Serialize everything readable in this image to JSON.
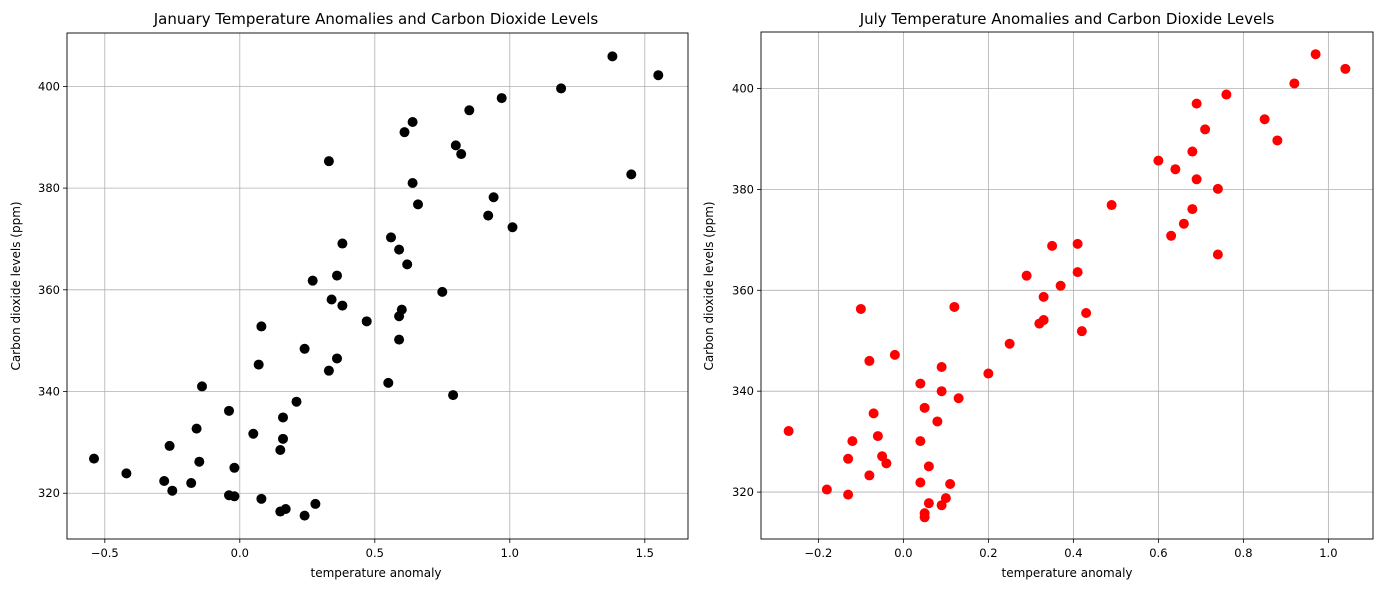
{
  "chart_data": [
    {
      "type": "scatter",
      "title": "January Temperature Anomalies and Carbon Dioxide Levels",
      "xlabel": "temperature anomaly",
      "ylabel": "Carbon dioxide levels (ppm)",
      "xlim": [
        -0.64,
        1.66
      ],
      "ylim": [
        311,
        410.5
      ],
      "xticks": [
        -0.5,
        0.0,
        0.5,
        1.0,
        1.5
      ],
      "xtick_labels": [
        "−0.5",
        "0.0",
        "0.5",
        "1.0",
        "1.5"
      ],
      "yticks": [
        320,
        340,
        360,
        380,
        400
      ],
      "ytick_labels": [
        "320",
        "340",
        "360",
        "380",
        "400"
      ],
      "grid": true,
      "color": "#000000",
      "points": [
        [
          -0.54,
          326.8
        ],
        [
          -0.42,
          323.9
        ],
        [
          -0.28,
          322.4
        ],
        [
          -0.25,
          320.5
        ],
        [
          -0.26,
          329.3
        ],
        [
          -0.18,
          322.0
        ],
        [
          -0.15,
          326.2
        ],
        [
          -0.16,
          332.7
        ],
        [
          -0.14,
          341.0
        ],
        [
          -0.04,
          336.2
        ],
        [
          -0.04,
          319.6
        ],
        [
          -0.02,
          319.4
        ],
        [
          -0.02,
          325.0
        ],
        [
          0.05,
          331.7
        ],
        [
          0.08,
          318.9
        ],
        [
          0.07,
          345.3
        ],
        [
          0.08,
          352.8
        ],
        [
          0.15,
          328.5
        ],
        [
          0.16,
          330.7
        ],
        [
          0.16,
          334.9
        ],
        [
          0.15,
          316.4
        ],
        [
          0.17,
          316.9
        ],
        [
          0.21,
          338.0
        ],
        [
          0.24,
          315.6
        ],
        [
          0.28,
          317.9
        ],
        [
          0.24,
          348.4
        ],
        [
          0.27,
          361.8
        ],
        [
          0.33,
          344.1
        ],
        [
          0.34,
          358.1
        ],
        [
          0.36,
          362.8
        ],
        [
          0.36,
          346.5
        ],
        [
          0.38,
          356.9
        ],
        [
          0.38,
          369.1
        ],
        [
          0.33,
          385.3
        ],
        [
          0.47,
          353.8
        ],
        [
          0.55,
          341.7
        ],
        [
          0.56,
          370.3
        ],
        [
          0.59,
          354.8
        ],
        [
          0.59,
          350.2
        ],
        [
          0.59,
          367.9
        ],
        [
          0.6,
          356.1
        ],
        [
          0.62,
          365.0
        ],
        [
          0.61,
          391.0
        ],
        [
          0.64,
          393.0
        ],
        [
          0.64,
          381.0
        ],
        [
          0.66,
          376.8
        ],
        [
          0.75,
          359.6
        ],
        [
          0.79,
          339.3
        ],
        [
          0.8,
          388.4
        ],
        [
          0.82,
          386.7
        ],
        [
          0.85,
          395.3
        ],
        [
          0.92,
          374.6
        ],
        [
          0.94,
          378.2
        ],
        [
          0.97,
          397.7
        ],
        [
          1.01,
          372.3
        ],
        [
          1.19,
          399.6
        ],
        [
          1.38,
          405.9
        ],
        [
          1.45,
          382.7
        ],
        [
          1.55,
          402.2
        ]
      ]
    },
    {
      "type": "scatter",
      "title": "July Temperature Anomalies and Carbon Dioxide Levels",
      "xlabel": "temperature anomaly",
      "ylabel": "Carbon dioxide levels (ppm)",
      "xlim": [
        -0.335,
        1.105
      ],
      "ylim": [
        310.7,
        411.2
      ],
      "xticks": [
        -0.2,
        0.0,
        0.2,
        0.4,
        0.6,
        0.8,
        1.0
      ],
      "xtick_labels": [
        "−0.2",
        "0.0",
        "0.2",
        "0.4",
        "0.6",
        "0.8",
        "1.0"
      ],
      "yticks": [
        320,
        340,
        360,
        380,
        400
      ],
      "ytick_labels": [
        "320",
        "340",
        "360",
        "380",
        "400"
      ],
      "grid": true,
      "color": "#ff0000",
      "points": [
        [
          -0.27,
          332.1
        ],
        [
          -0.18,
          320.5
        ],
        [
          -0.13,
          319.5
        ],
        [
          -0.13,
          326.6
        ],
        [
          -0.12,
          330.1
        ],
        [
          -0.1,
          356.3
        ],
        [
          -0.08,
          346.0
        ],
        [
          -0.08,
          323.3
        ],
        [
          -0.07,
          335.6
        ],
        [
          -0.06,
          331.1
        ],
        [
          -0.05,
          327.1
        ],
        [
          -0.04,
          325.7
        ],
        [
          -0.02,
          347.2
        ],
        [
          0.04,
          341.5
        ],
        [
          0.04,
          330.1
        ],
        [
          0.04,
          321.9
        ],
        [
          0.05,
          336.7
        ],
        [
          0.05,
          315.0
        ],
        [
          0.05,
          315.8
        ],
        [
          0.06,
          317.8
        ],
        [
          0.06,
          325.1
        ],
        [
          0.08,
          334.0
        ],
        [
          0.09,
          340.0
        ],
        [
          0.09,
          344.8
        ],
        [
          0.09,
          317.4
        ],
        [
          0.1,
          318.8
        ],
        [
          0.11,
          321.6
        ],
        [
          0.12,
          356.7
        ],
        [
          0.13,
          338.6
        ],
        [
          0.2,
          343.5
        ],
        [
          0.25,
          349.4
        ],
        [
          0.29,
          362.9
        ],
        [
          0.32,
          353.4
        ],
        [
          0.33,
          354.1
        ],
        [
          0.33,
          358.7
        ],
        [
          0.35,
          368.8
        ],
        [
          0.37,
          360.9
        ],
        [
          0.41,
          363.6
        ],
        [
          0.41,
          369.2
        ],
        [
          0.42,
          351.9
        ],
        [
          0.43,
          355.5
        ],
        [
          0.49,
          376.9
        ],
        [
          0.6,
          385.7
        ],
        [
          0.63,
          370.8
        ],
        [
          0.64,
          384.0
        ],
        [
          0.66,
          373.2
        ],
        [
          0.68,
          387.5
        ],
        [
          0.68,
          376.1
        ],
        [
          0.69,
          382.0
        ],
        [
          0.69,
          397.0
        ],
        [
          0.71,
          391.9
        ],
        [
          0.74,
          380.1
        ],
        [
          0.74,
          367.1
        ],
        [
          0.76,
          398.8
        ],
        [
          0.85,
          393.9
        ],
        [
          0.88,
          389.7
        ],
        [
          0.92,
          401.0
        ],
        [
          0.97,
          406.8
        ],
        [
          1.04,
          403.9
        ]
      ]
    }
  ]
}
